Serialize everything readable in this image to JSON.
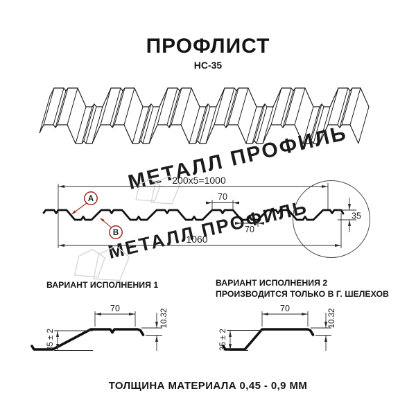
{
  "header": {
    "title": "ПРОФЛИСТ",
    "subtitle": "НС-35"
  },
  "watermark": {
    "text": "МЕТАЛЛ ПРОФИЛЬ"
  },
  "cross_section": {
    "dim_total": "200x5=1000",
    "dim_overall": "1060",
    "dim_rib_top": "70",
    "dim_rib_bottom": "70",
    "dim_height": "35",
    "label_a": "A",
    "label_b": "B"
  },
  "variant1": {
    "heading": "ВАРИАНТ ИСПОЛНЕНИЯ 1",
    "dim_width": "70",
    "dim_lap": "10.32",
    "dim_height": "35 ± 2"
  },
  "variant2": {
    "heading": "ВАРИАНТ ИСПОЛНЕНИЯ 2",
    "heading2": "ПРОИЗВОДИТСЯ ТОЛЬКО В Г. ШЕЛЕХОВ",
    "dim_width": "70",
    "dim_lap": "10.32",
    "dim_height": "35 ± 2"
  },
  "footer": {
    "text": "ТОЛЩИНА МАТЕРИАЛА 0,45 - 0,9 ММ"
  },
  "colors": {
    "line": "#1c1c1c",
    "dim_line": "#2b2b2b",
    "accent_red": "#a3261e",
    "watermark_text": "#cbcbcb",
    "watermark_logo": "#d6d6d6"
  }
}
